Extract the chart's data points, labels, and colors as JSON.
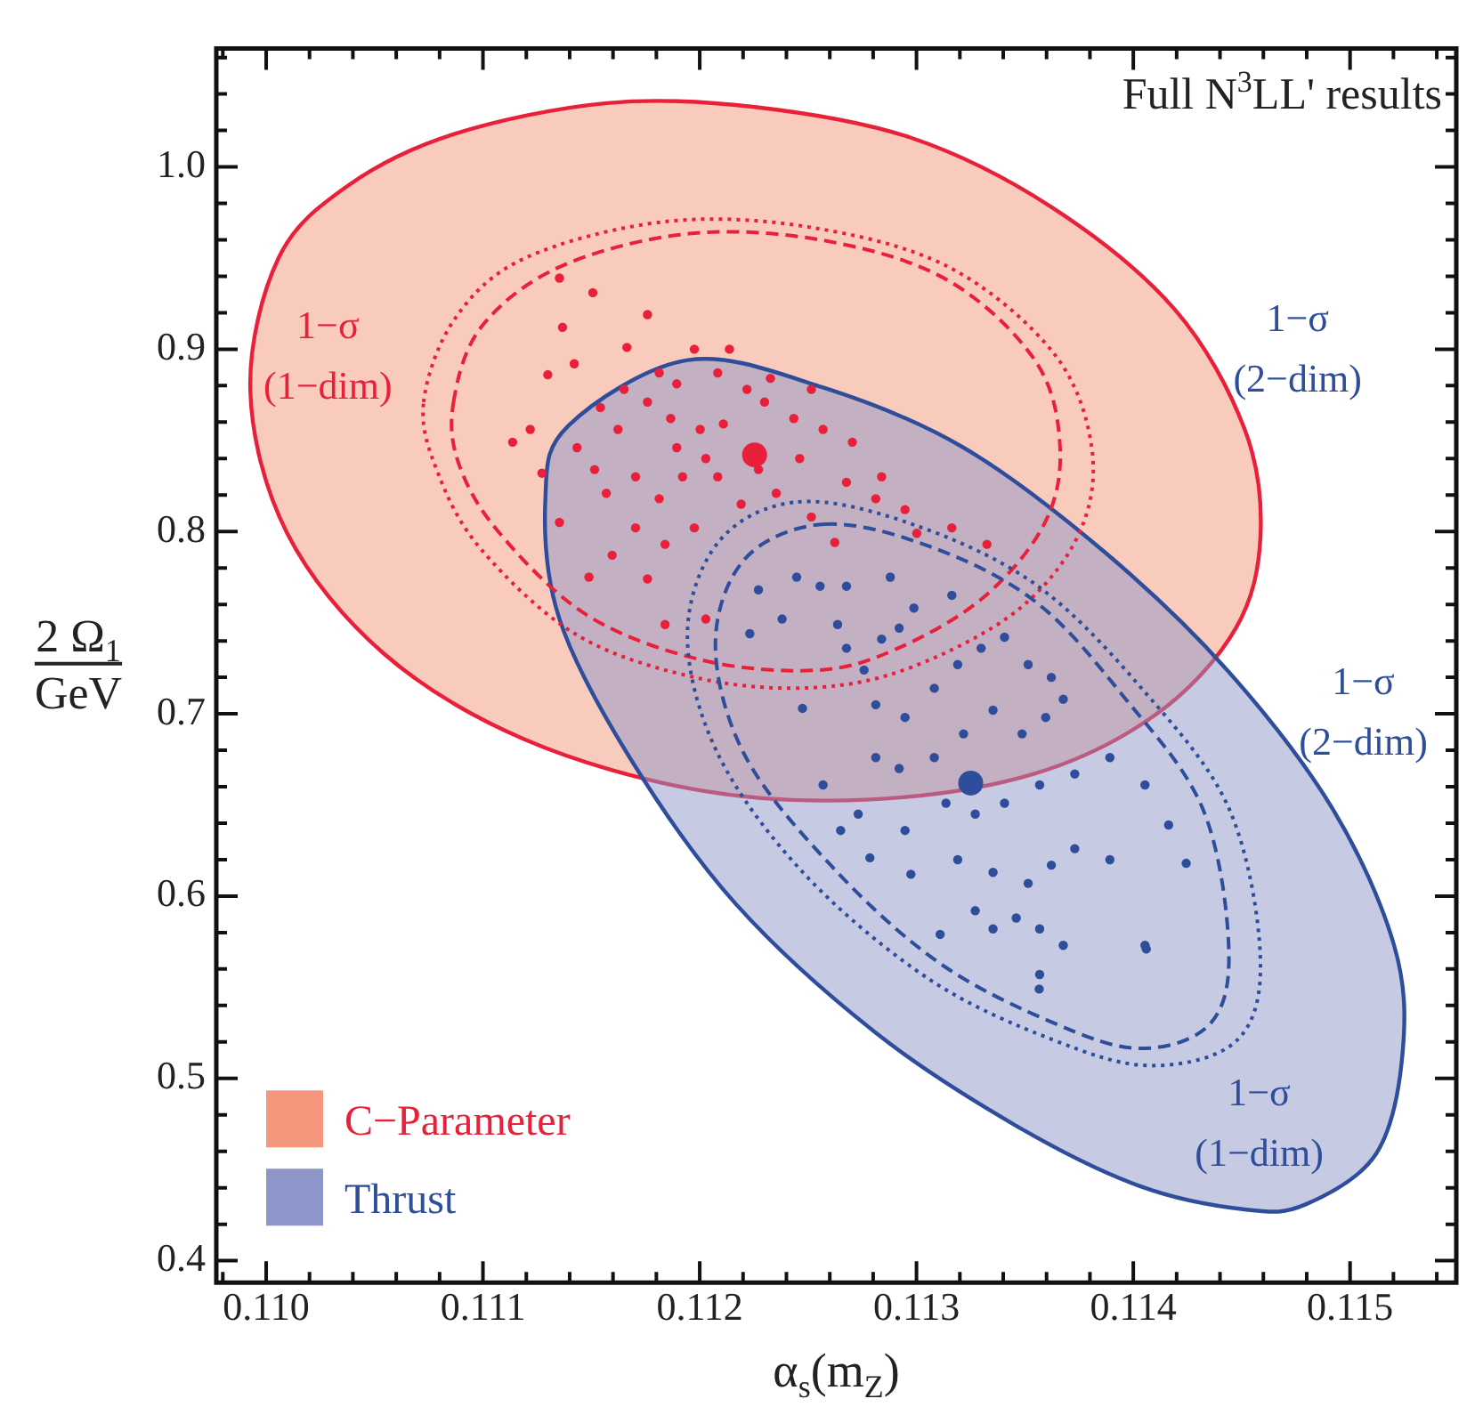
{
  "chart_data": {
    "type": "scatter",
    "title": "Full N$^{3}$LL' results",
    "xlabel": "α$_{s}$(m$_{Z}$)",
    "ylabel": "2 Ω$_{1}$ GeV",
    "xlim": [
      0.10977,
      0.11549
    ],
    "ylim": [
      0.388,
      1.065
    ],
    "xticks": [
      {
        "value": 0.1098,
        "label": null
      },
      {
        "value": 0.11,
        "label": "0.110"
      },
      {
        "value": 0.1102,
        "label": null
      },
      {
        "value": 0.1104,
        "label": null
      },
      {
        "value": 0.1106,
        "label": null
      },
      {
        "value": 0.1108,
        "label": null
      },
      0.111,
      {
        "value": 0.1112,
        "label": null
      },
      {
        "value": 0.1114,
        "label": null
      },
      {
        "value": 0.1116,
        "label": null
      },
      {
        "value": 0.1118,
        "label": null
      },
      0.112,
      {
        "value": 0.1122,
        "label": null
      },
      {
        "value": 0.1124,
        "label": null
      },
      {
        "value": 0.1126,
        "label": null
      },
      {
        "value": 0.1128,
        "label": null
      },
      0.113,
      {
        "value": 0.1132,
        "label": null
      },
      {
        "value": 0.1134,
        "label": null
      },
      {
        "value": 0.1136,
        "label": null
      },
      {
        "value": 0.1138,
        "label": null
      },
      0.114,
      {
        "value": 0.1142,
        "label": null
      },
      {
        "value": 0.1144,
        "label": null
      },
      {
        "value": 0.1146,
        "label": null
      },
      {
        "value": 0.1148,
        "label": null
      },
      0.115,
      {
        "value": 0.1152,
        "label": null
      },
      {
        "value": 0.1154,
        "label": null
      }
    ],
    "yticks": [
      0.4,
      {
        "value": 0.42,
        "label": null
      },
      {
        "value": 0.44,
        "label": null
      },
      {
        "value": 0.46,
        "label": null
      },
      {
        "value": 0.48,
        "label": null
      },
      0.5,
      {
        "value": 0.52,
        "label": null
      },
      {
        "value": 0.54,
        "label": null
      },
      {
        "value": 0.56,
        "label": null
      },
      {
        "value": 0.58,
        "label": null
      },
      0.6,
      {
        "value": 0.62,
        "label": null
      },
      {
        "value": 0.64,
        "label": null
      },
      {
        "value": 0.66,
        "label": null
      },
      {
        "value": 0.68,
        "label": null
      },
      0.7,
      {
        "value": 0.72,
        "label": null
      },
      {
        "value": 0.74,
        "label": null
      },
      {
        "value": 0.76,
        "label": null
      },
      {
        "value": 0.78,
        "label": null
      },
      0.8,
      {
        "value": 0.82,
        "label": null
      },
      {
        "value": 0.84,
        "label": null
      },
      {
        "value": 0.86,
        "label": null
      },
      {
        "value": 0.88,
        "label": null
      },
      0.9,
      {
        "value": 0.92,
        "label": null
      },
      {
        "value": 0.94,
        "label": null
      },
      {
        "value": 0.96,
        "label": null
      },
      {
        "value": 0.98,
        "label": null
      },
      {
        "value": 1.0,
        "label": "1.0"
      },
      {
        "value": 1.02,
        "label": null
      },
      {
        "value": 1.04,
        "label": null
      },
      {
        "value": 1.06,
        "label": null
      }
    ],
    "grid": false,
    "legend": "bottom left",
    "annotations": [
      "1−σ (1−dim)",
      "1−σ (2−dim)",
      "1−σ (2−dim)",
      "1−σ (1−dim)"
    ],
    "series": [
      {
        "name": "C−Parameter",
        "type": "area",
        "color": "#f4977c",
        "x": [
          0.109927,
          0.110057,
          0.110381,
          0.110867,
          0.111572,
          0.112245,
          0.112974,
          0.113622,
          0.11419,
          0.114514,
          0.114587,
          0.114473,
          0.114109,
          0.113541,
          0.112788,
          0.112002,
          0.111191,
          0.110543,
          0.110097
        ],
        "values": [
          0.877,
          0.95,
          0.99,
          1.018,
          1.035,
          1.033,
          1.016,
          0.978,
          0.922,
          0.856,
          0.798,
          0.747,
          0.7,
          0.667,
          0.653,
          0.658,
          0.686,
          0.733,
          0.799
        ]
      },
      {
        "name": "Thrust",
        "type": "area",
        "color": "#8e95c8",
        "x": [
          0.111288,
          0.111394,
          0.111945,
          0.112569,
          0.113217,
          0.113865,
          0.114433,
          0.114919,
          0.115203,
          0.115243,
          0.115122,
          0.114797,
          0.114522,
          0.114028,
          0.11346,
          0.112812,
          0.112164,
          0.111677,
          0.111353
        ],
        "values": [
          0.818,
          0.858,
          0.894,
          0.879,
          0.846,
          0.789,
          0.724,
          0.648,
          0.573,
          0.515,
          0.459,
          0.431,
          0.428,
          0.441,
          0.474,
          0.525,
          0.596,
          0.676,
          0.752
        ]
      },
      {
        "type": "scatter",
        "color": "#e8203a",
        "marker": "circle",
        "x": [
          0.111507,
          0.111353,
          0.111759,
          0.111367,
          0.111664,
          0.111421,
          0.111299,
          0.111137,
          0.111218,
          0.111272,
          0.111353,
          0.111489,
          0.111596,
          0.111704,
          0.111813,
          0.111921,
          0.112028,
          0.112109,
          0.112299,
          0.112434,
          0.112569,
          0.112704,
          0.112839,
          0.112947,
          0.113001,
          0.113163,
          0.113325,
          0.112623,
          0.112515,
          0.112353,
          0.112191,
          0.111975,
          0.11184,
          0.111759,
          0.11184,
          0.112028,
          0.111623,
          0.111759,
          0.111894,
          0.112083,
          0.112218,
          0.112326,
          0.112515,
          0.112137,
          0.111975,
          0.111813,
          0.111542,
          0.111434,
          0.111569,
          0.111704,
          0.111894,
          0.112083,
          0.112271,
          0.112461,
          0.112677,
          0.112812,
          0.111515,
          0.111651,
          0.111866,
          0.112002
        ],
        "values": [
          0.931,
          0.939,
          0.919,
          0.912,
          0.901,
          0.892,
          0.886,
          0.849,
          0.856,
          0.832,
          0.805,
          0.775,
          0.787,
          0.802,
          0.818,
          0.83,
          0.84,
          0.859,
          0.871,
          0.862,
          0.856,
          0.849,
          0.83,
          0.812,
          0.799,
          0.802,
          0.793,
          0.794,
          0.808,
          0.821,
          0.815,
          0.802,
          0.793,
          0.774,
          0.749,
          0.752,
          0.856,
          0.871,
          0.881,
          0.887,
          0.878,
          0.884,
          0.878,
          0.9,
          0.9,
          0.887,
          0.868,
          0.846,
          0.821,
          0.83,
          0.846,
          0.83,
          0.834,
          0.84,
          0.827,
          0.818,
          0.834,
          0.878,
          0.862,
          0.856
        ]
      },
      {
        "type": "scatter",
        "color": "#2e4d9b",
        "marker": "circle",
        "x": [
          0.112447,
          0.112271,
          0.112555,
          0.112677,
          0.112879,
          0.113163,
          0.11238,
          0.112231,
          0.112636,
          0.112988,
          0.112839,
          0.11292,
          0.112677,
          0.112758,
          0.112474,
          0.112812,
          0.112947,
          0.113082,
          0.11319,
          0.113298,
          0.113406,
          0.113515,
          0.113622,
          0.113677,
          0.113596,
          0.113487,
          0.113353,
          0.113217,
          0.113082,
          0.11292,
          0.112812,
          0.112569,
          0.112731,
          0.11265,
          0.112947,
          0.113136,
          0.113271,
          0.113406,
          0.113568,
          0.11373,
          0.113892,
          0.114054,
          0.114163,
          0.114244,
          0.114054,
          0.113892,
          0.11373,
          0.113622,
          0.113515,
          0.113353,
          0.11319,
          0.112974,
          0.112785,
          0.113271,
          0.11346,
          0.113568,
          0.113677,
          0.113568,
          0.113109,
          0.113353,
          0.113566,
          0.11406
        ],
        "values": [
          0.775,
          0.768,
          0.77,
          0.77,
          0.775,
          0.765,
          0.752,
          0.744,
          0.749,
          0.758,
          0.741,
          0.747,
          0.736,
          0.724,
          0.703,
          0.705,
          0.698,
          0.714,
          0.727,
          0.736,
          0.742,
          0.727,
          0.72,
          0.708,
          0.698,
          0.689,
          0.702,
          0.689,
          0.676,
          0.67,
          0.676,
          0.661,
          0.645,
          0.636,
          0.636,
          0.651,
          0.645,
          0.651,
          0.661,
          0.667,
          0.676,
          0.661,
          0.639,
          0.618,
          0.573,
          0.62,
          0.626,
          0.617,
          0.607,
          0.613,
          0.62,
          0.612,
          0.621,
          0.592,
          0.588,
          0.582,
          0.573,
          0.557,
          0.579,
          0.582,
          0.549,
          0.571
        ]
      },
      {
        "type": "scatter",
        "color": "#e8203a",
        "marker": "circle",
        "x": [
          0.112253
        ],
        "values": [
          0.842
        ]
      },
      {
        "type": "scatter",
        "color": "#2e4d9b",
        "marker": "circle",
        "x": [
          0.11325
        ],
        "values": [
          0.662
        ]
      }
    ]
  }
}
